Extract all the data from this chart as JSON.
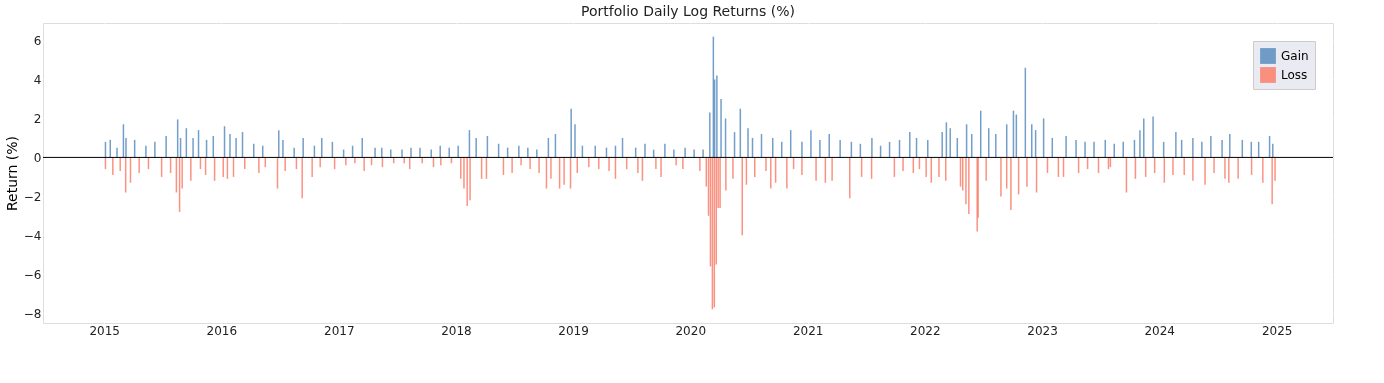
{
  "chart_data": {
    "type": "bar",
    "title": "Portfolio Daily Log Returns (%)",
    "ylabel": "Return (%)",
    "xlim": [
      "2014-07-10",
      "2025-06-10"
    ],
    "ylim": [
      -8.5,
      6.9
    ],
    "yticks": [
      -8,
      -6,
      -4,
      -2,
      0,
      2,
      4,
      6
    ],
    "xticks": [
      "2015",
      "2016",
      "2017",
      "2018",
      "2019",
      "2020",
      "2021",
      "2022",
      "2023",
      "2024",
      "2025"
    ],
    "grid": true,
    "legend": "top right",
    "ref_lines": [
      {
        "axis": "y",
        "value": 0,
        "color": "#000000"
      }
    ],
    "series": [
      {
        "name": "Gain",
        "color": "#5b8dbf",
        "x": [
          "2015-01-05",
          "2015-01-20",
          "2015-02-10",
          "2015-03-02",
          "2015-03-10",
          "2015-04-06",
          "2015-05-11",
          "2015-06-08",
          "2015-07-13",
          "2015-08-18",
          "2015-08-27",
          "2015-09-14",
          "2015-10-05",
          "2015-10-22",
          "2015-11-16",
          "2015-12-07",
          "2016-01-11",
          "2016-01-28",
          "2016-02-16",
          "2016-03-07",
          "2016-04-11",
          "2016-05-09",
          "2016-06-28",
          "2016-07-11",
          "2016-08-15",
          "2016-09-12",
          "2016-10-17",
          "2016-11-09",
          "2016-12-12",
          "2017-01-16",
          "2017-02-13",
          "2017-03-15",
          "2017-04-24",
          "2017-05-15",
          "2017-06-12",
          "2017-07-17",
          "2017-08-14",
          "2017-09-11",
          "2017-10-16",
          "2017-11-13",
          "2017-12-11",
          "2018-01-08",
          "2018-02-12",
          "2018-03-05",
          "2018-04-09",
          "2018-05-14",
          "2018-06-11",
          "2018-07-16",
          "2018-08-13",
          "2018-09-10",
          "2018-10-16",
          "2018-11-07",
          "2018-12-26",
          "2019-01-07",
          "2019-01-30",
          "2019-03-11",
          "2019-04-15",
          "2019-05-13",
          "2019-06-04",
          "2019-07-15",
          "2019-08-13",
          "2019-09-09",
          "2019-10-14",
          "2019-11-11",
          "2019-12-16",
          "2020-01-13",
          "2020-02-10",
          "2020-03-02",
          "2020-03-13",
          "2020-03-17",
          "2020-03-24",
          "2020-04-06",
          "2020-04-20",
          "2020-05-18",
          "2020-06-05",
          "2020-06-29",
          "2020-07-13",
          "2020-08-10",
          "2020-09-14",
          "2020-10-12",
          "2020-11-09",
          "2020-12-14",
          "2021-01-11",
          "2021-02-08",
          "2021-03-09",
          "2021-04-12",
          "2021-05-17",
          "2021-06-14",
          "2021-07-20",
          "2021-08-16",
          "2021-09-13",
          "2021-10-14",
          "2021-11-15",
          "2021-12-06",
          "2022-01-10",
          "2022-02-24",
          "2022-03-09",
          "2022-03-21",
          "2022-04-12",
          "2022-05-11",
          "2022-05-27",
          "2022-06-24",
          "2022-07-19",
          "2022-08-10",
          "2022-09-13",
          "2022-10-04",
          "2022-10-13",
          "2022-11-10",
          "2022-11-30",
          "2022-12-12",
          "2023-01-06",
          "2023-02-02",
          "2023-03-17",
          "2023-04-17",
          "2023-05-15",
          "2023-06-12",
          "2023-07-17",
          "2023-08-14",
          "2023-09-11",
          "2023-10-16",
          "2023-11-02",
          "2023-11-14",
          "2023-12-13",
          "2024-01-15",
          "2024-02-22",
          "2024-03-11",
          "2024-04-15",
          "2024-05-13",
          "2024-06-10",
          "2024-07-15",
          "2024-08-08",
          "2024-09-16",
          "2024-10-14",
          "2024-11-06",
          "2024-12-10",
          "2024-12-20"
        ],
        "values": [
          0.8,
          0.9,
          0.5,
          1.7,
          1.0,
          0.9,
          0.6,
          0.8,
          1.1,
          1.95,
          1.0,
          1.5,
          1.0,
          1.4,
          0.9,
          1.1,
          1.6,
          1.2,
          1.0,
          1.3,
          0.7,
          0.6,
          1.4,
          0.9,
          0.5,
          1.0,
          0.6,
          1.0,
          0.8,
          0.4,
          0.6,
          1.0,
          0.5,
          0.5,
          0.4,
          0.4,
          0.5,
          0.5,
          0.4,
          0.6,
          0.5,
          0.6,
          1.4,
          1.0,
          1.1,
          0.7,
          0.5,
          0.6,
          0.5,
          0.4,
          1.0,
          1.2,
          2.5,
          1.7,
          0.6,
          0.6,
          0.5,
          0.6,
          1.0,
          0.5,
          0.7,
          0.4,
          0.7,
          0.4,
          0.5,
          0.4,
          0.4,
          2.3,
          6.2,
          4.0,
          4.2,
          3.0,
          2.0,
          1.3,
          2.5,
          1.5,
          1.0,
          1.2,
          1.0,
          0.8,
          1.4,
          0.8,
          1.4,
          0.9,
          1.2,
          0.9,
          0.8,
          0.7,
          1.0,
          0.6,
          0.8,
          0.9,
          1.3,
          1.0,
          0.9,
          1.3,
          1.8,
          1.5,
          1.0,
          1.7,
          1.2,
          2.4,
          1.5,
          1.2,
          1.7,
          2.4,
          2.2,
          4.6,
          1.7,
          1.4,
          2.0,
          1.0,
          1.1,
          0.9,
          0.8,
          0.8,
          0.9,
          0.7,
          0.8,
          0.9,
          1.4,
          2.0,
          2.1,
          0.8,
          1.3,
          0.9,
          1.0,
          0.8,
          1.1,
          0.9,
          1.2,
          0.9,
          0.8,
          0.8,
          1.1,
          0.7
        ]
      },
      {
        "name": "Loss",
        "color": "#fa7f6b",
        "x": [
          "2015-01-05",
          "2015-01-28",
          "2015-02-20",
          "2015-03-09",
          "2015-03-24",
          "2015-04-20",
          "2015-05-19",
          "2015-06-29",
          "2015-07-27",
          "2015-08-14",
          "2015-08-24",
          "2015-09-01",
          "2015-09-28",
          "2015-10-28",
          "2015-11-13",
          "2015-12-11",
          "2016-01-07",
          "2016-01-20",
          "2016-02-08",
          "2016-03-14",
          "2016-04-27",
          "2016-05-17",
          "2016-06-24",
          "2016-07-18",
          "2016-08-22",
          "2016-09-09",
          "2016-10-10",
          "2016-11-04",
          "2016-12-19",
          "2017-01-23",
          "2017-02-20",
          "2017-03-21",
          "2017-04-13",
          "2017-05-17",
          "2017-06-21",
          "2017-07-24",
          "2017-08-10",
          "2017-09-18",
          "2017-10-23",
          "2017-11-15",
          "2017-12-18",
          "2018-01-16",
          "2018-01-26",
          "2018-02-05",
          "2018-02-14",
          "2018-03-22",
          "2018-04-06",
          "2018-05-29",
          "2018-06-25",
          "2018-07-23",
          "2018-08-20",
          "2018-09-17",
          "2018-10-10",
          "2018-10-24",
          "2018-11-20",
          "2018-12-04",
          "2018-12-24",
          "2019-01-14",
          "2019-02-19",
          "2019-03-22",
          "2019-04-23",
          "2019-05-13",
          "2019-06-17",
          "2019-07-22",
          "2019-08-05",
          "2019-09-16",
          "2019-10-02",
          "2019-11-18",
          "2019-12-09",
          "2020-01-31",
          "2020-02-20",
          "2020-02-27",
          "2020-03-04",
          "2020-03-10",
          "2020-03-16",
          "2020-03-22",
          "2020-03-28",
          "2020-04-03",
          "2020-04-21",
          "2020-05-13",
          "2020-06-11",
          "2020-06-24",
          "2020-07-20",
          "2020-08-24",
          "2020-09-08",
          "2020-09-23",
          "2020-10-28",
          "2020-11-18",
          "2020-12-14",
          "2021-01-27",
          "2021-02-25",
          "2021-03-18",
          "2021-05-12",
          "2021-06-18",
          "2021-07-19",
          "2021-09-28",
          "2021-10-25",
          "2021-11-26",
          "2021-12-15",
          "2022-01-05",
          "2022-01-21",
          "2022-02-14",
          "2022-03-07",
          "2022-04-22",
          "2022-04-29",
          "2022-05-09",
          "2022-05-18",
          "2022-06-13",
          "2022-06-16",
          "2022-07-11",
          "2022-08-26",
          "2022-09-13",
          "2022-09-26",
          "2022-10-20",
          "2022-11-15",
          "2022-12-15",
          "2023-01-18",
          "2023-02-21",
          "2023-03-09",
          "2023-04-25",
          "2023-05-23",
          "2023-06-26",
          "2023-07-27",
          "2023-08-02",
          "2023-09-21",
          "2023-10-19",
          "2023-11-20",
          "2023-12-18",
          "2024-01-17",
          "2024-02-13",
          "2024-03-19",
          "2024-04-15",
          "2024-05-23",
          "2024-06-20",
          "2024-07-24",
          "2024-08-05",
          "2024-09-03",
          "2024-10-15",
          "2024-11-19",
          "2024-12-18",
          "2024-12-27"
        ],
        "values": [
          -0.6,
          -0.9,
          -0.7,
          -1.8,
          -1.3,
          -0.8,
          -0.6,
          -1.0,
          -0.8,
          -1.8,
          -2.8,
          -1.6,
          -1.2,
          -0.6,
          -0.9,
          -1.2,
          -1.0,
          -1.1,
          -1.0,
          -0.6,
          -0.8,
          -0.5,
          -1.6,
          -0.7,
          -0.6,
          -2.1,
          -1.0,
          -0.5,
          -0.6,
          -0.4,
          -0.3,
          -0.7,
          -0.4,
          -0.5,
          -0.3,
          -0.3,
          -0.6,
          -0.3,
          -0.5,
          -0.4,
          -0.3,
          -1.1,
          -1.6,
          -2.5,
          -2.2,
          -1.1,
          -1.1,
          -0.9,
          -0.8,
          -0.4,
          -0.6,
          -0.8,
          -1.6,
          -1.1,
          -1.6,
          -1.4,
          -1.6,
          -0.8,
          -0.5,
          -0.6,
          -0.7,
          -1.1,
          -0.6,
          -0.8,
          -1.2,
          -0.6,
          -1.0,
          -0.4,
          -0.6,
          -0.7,
          -1.5,
          -3.0,
          -5.6,
          -7.8,
          -7.7,
          -5.5,
          -2.6,
          -2.6,
          -1.7,
          -1.1,
          -4.0,
          -1.4,
          -1.0,
          -0.7,
          -1.6,
          -1.3,
          -1.6,
          -0.6,
          -0.9,
          -1.2,
          -1.3,
          -1.2,
          -2.1,
          -1.0,
          -1.1,
          -1.0,
          -0.7,
          -0.8,
          -0.6,
          -1.0,
          -1.3,
          -1.0,
          -1.2,
          -1.5,
          -1.7,
          -2.4,
          -2.9,
          -3.8,
          -3.1,
          -1.2,
          -2.0,
          -1.6,
          -2.7,
          -1.9,
          -1.5,
          -1.8,
          -0.8,
          -1.0,
          -1.0,
          -0.8,
          -0.6,
          -0.8,
          -0.6,
          -0.5,
          -1.8,
          -1.1,
          -1.0,
          -0.8,
          -1.3,
          -0.9,
          -0.9,
          -1.2,
          -1.4,
          -0.8,
          -1.1,
          -1.3,
          -1.1,
          -0.9,
          -1.3,
          -2.4,
          -1.2
        ]
      }
    ]
  }
}
